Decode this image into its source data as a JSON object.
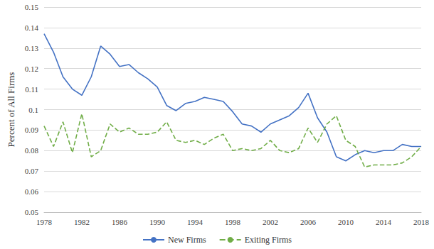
{
  "chart_data": {
    "type": "line",
    "y_label": "Percent of All Firms",
    "x": [
      1978,
      1979,
      1980,
      1981,
      1982,
      1983,
      1984,
      1985,
      1986,
      1987,
      1988,
      1989,
      1990,
      1991,
      1992,
      1993,
      1994,
      1995,
      1996,
      1997,
      1998,
      1999,
      2000,
      2001,
      2002,
      2003,
      2004,
      2005,
      2006,
      2007,
      2008,
      2009,
      2010,
      2011,
      2012,
      2013,
      2014,
      2015,
      2016,
      2017,
      2018
    ],
    "series": [
      {
        "name": "New Firms",
        "color": "#4472c4",
        "line_style": "solid",
        "marker": "none",
        "values": [
          0.137,
          0.128,
          0.116,
          0.11,
          0.107,
          0.116,
          0.131,
          0.127,
          0.121,
          0.122,
          0.118,
          0.115,
          0.111,
          0.102,
          0.0995,
          0.103,
          0.104,
          0.106,
          0.105,
          0.104,
          0.099,
          0.093,
          0.092,
          0.089,
          0.093,
          0.095,
          0.097,
          0.101,
          0.108,
          0.096,
          0.089,
          0.077,
          0.075,
          0.078,
          0.08,
          0.079,
          0.08,
          0.08,
          0.083,
          0.082,
          0.082
        ]
      },
      {
        "name": "Exiting Firms",
        "color": "#70ad47",
        "line_style": "dashed",
        "marker": "none",
        "values": [
          0.092,
          0.082,
          0.094,
          0.079,
          0.098,
          0.077,
          0.08,
          0.093,
          0.089,
          0.091,
          0.088,
          0.088,
          0.089,
          0.094,
          0.085,
          0.084,
          0.085,
          0.083,
          0.086,
          0.088,
          0.08,
          0.081,
          0.08,
          0.081,
          0.085,
          0.08,
          0.079,
          0.081,
          0.091,
          0.084,
          0.093,
          0.097,
          0.085,
          0.082,
          0.072,
          0.073,
          0.073,
          0.073,
          0.074,
          0.077,
          0.082
        ]
      }
    ],
    "xlim": [
      1978,
      2018
    ],
    "xticks": [
      1978,
      1982,
      1986,
      1990,
      1994,
      1998,
      2002,
      2006,
      2010,
      2014,
      2018
    ],
    "ylim": [
      0.05,
      0.15
    ],
    "yticks": [
      0.05,
      0.06,
      0.07,
      0.08,
      0.09,
      0.1,
      0.11,
      0.12,
      0.13,
      0.14,
      0.15
    ],
    "grid": true,
    "legend": "bottom"
  }
}
